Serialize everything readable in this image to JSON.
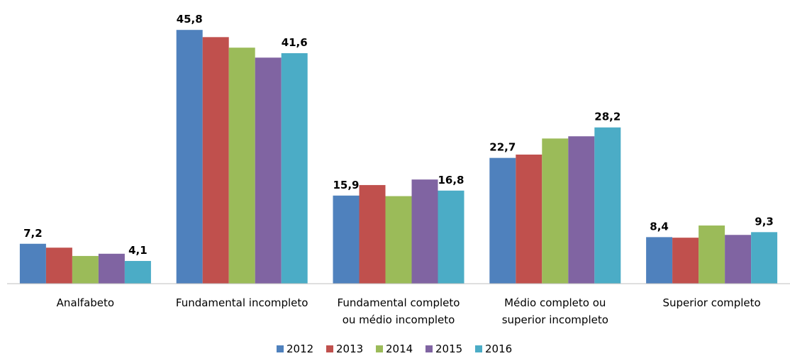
{
  "chart_data": {
    "type": "bar",
    "categories": [
      "Analfabeto",
      "Fundamental incompleto",
      "Fundamental completo\nou médio incompleto",
      "Médio completo ou\nsuperior incompleto",
      "Superior completo"
    ],
    "series": [
      {
        "name": "2012",
        "color": "#4f81bd",
        "values": [
          7.2,
          45.8,
          15.9,
          22.7,
          8.4
        ],
        "value_labels": [
          "7,2",
          "45,8",
          "15,9",
          "22,7",
          "8,4"
        ]
      },
      {
        "name": "2013",
        "color": "#c0504d",
        "values": [
          6.5,
          44.5,
          17.8,
          23.3,
          8.3
        ]
      },
      {
        "name": "2014",
        "color": "#9bbb59",
        "values": [
          5.0,
          42.6,
          15.8,
          26.2,
          10.5
        ]
      },
      {
        "name": "2015",
        "color": "#8064a2",
        "values": [
          5.4,
          40.8,
          18.8,
          26.6,
          8.8
        ]
      },
      {
        "name": "2016",
        "color": "#4bacc6",
        "values": [
          4.1,
          41.6,
          16.8,
          28.2,
          9.3
        ],
        "value_labels": [
          "4,1",
          "41,6",
          "16,8",
          "28,2",
          "9,3"
        ]
      }
    ],
    "ylim": [
      0,
      48
    ],
    "legend": "bottom"
  }
}
